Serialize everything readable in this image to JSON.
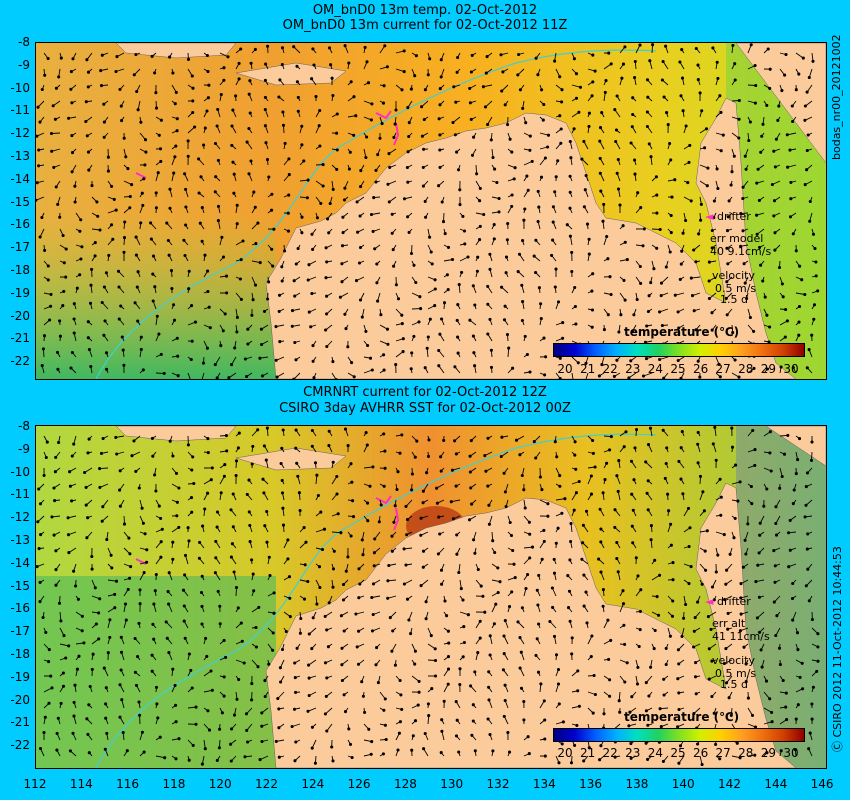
{
  "top_panel": {
    "title_line1": "OM_bnD0 13m temp. 02-Oct-2012",
    "title_line2": "OM_bnD0 13m current for 02-Oct-2012 11Z",
    "legend_title": "temperature (℃)",
    "drifter_label": "drifter",
    "err_title": "err model",
    "err_values": "40 9.1cm/s",
    "velocity_title": "velocity",
    "velocity_scale": "0.5 m/s",
    "velocity_days": "1.5 d"
  },
  "bottom_panel": {
    "title_line1": "CMRNRT current for 02-Oct-2012 12Z",
    "title_line2": "CSIRO 3day AVHRR SST for 02-Oct-2012 00Z",
    "legend_title": "temperature (℃)",
    "drifter_label": "drifter",
    "err_title": "err alt",
    "err_values": "41 11cm/s",
    "velocity_title": "velocity",
    "velocity_scale": "0.5 m/s",
    "velocity_days": "1.5 d"
  },
  "side_labels": {
    "top_right": "bodas_nr00_20121002",
    "bottom_right": "Ⓒ CSIRO 2012  11-Oct-2012 10:44:53"
  },
  "axes": {
    "lat_ticks": [
      "-8",
      "-9",
      "-10",
      "-11",
      "-12",
      "-13",
      "-14",
      "-15",
      "-16",
      "-17",
      "-18",
      "-19",
      "-20",
      "-21",
      "-22"
    ],
    "lon_ticks": [
      "112",
      "114",
      "116",
      "118",
      "120",
      "122",
      "124",
      "126",
      "128",
      "130",
      "132",
      "134",
      "136",
      "138",
      "140",
      "142",
      "144",
      "146"
    ]
  },
  "colorbar": {
    "ticks": [
      "20",
      "21",
      "22",
      "23",
      "24",
      "25",
      "26",
      "27",
      "28",
      "29",
      "30"
    ],
    "colors": [
      "#000080",
      "#0000d0",
      "#0060ff",
      "#00b0ff",
      "#00e0c0",
      "#20d060",
      "#80e020",
      "#d0f000",
      "#ffd000",
      "#ffa020",
      "#f07010",
      "#d04000",
      "#900000"
    ]
  },
  "colors": {
    "background": "#00ccff",
    "land": "#fccb9c",
    "warm_sea": "#f8a830",
    "mid_sea": "#e8d020",
    "cool_sea": "#60c050",
    "contour": "#40d0d0",
    "drifter": "#ff30c0"
  }
}
